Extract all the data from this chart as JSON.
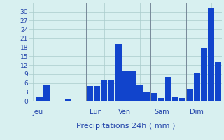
{
  "xlabel": "Précipitations 24h ( mm )",
  "background_color": "#d8f0f0",
  "bar_color": "#1144cc",
  "grid_color": "#aacccc",
  "vline_color": "#778899",
  "text_color": "#2244aa",
  "ylim": [
    0,
    33
  ],
  "yticks": [
    0,
    3,
    6,
    9,
    12,
    15,
    18,
    21,
    24,
    27,
    30
  ],
  "day_labels": [
    "Jeu",
    "Lun",
    "Ven",
    "Sam",
    "Dim"
  ],
  "day_label_bar_indices": [
    0,
    8,
    12,
    17,
    22
  ],
  "vline_bar_indices": [
    8,
    12,
    17,
    22
  ],
  "values": [
    0,
    1.5,
    5.5,
    0,
    0,
    0.5,
    0,
    0,
    5,
    5,
    7,
    7,
    19,
    10,
    10,
    5.5,
    3,
    2.5,
    1,
    8,
    1.5,
    1,
    4,
    9.5,
    18,
    31,
    13
  ],
  "bar_width": 0.9
}
